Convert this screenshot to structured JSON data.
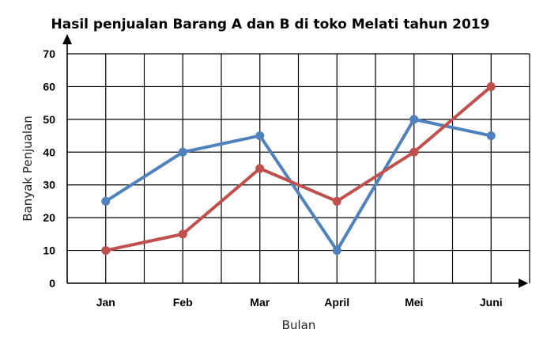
{
  "chart_data": {
    "type": "line",
    "title": "Hasil penjualan Barang A dan B di toko Melati tahun 2019",
    "xlabel": "Bulan",
    "ylabel": "Banyak Penjualan",
    "categories": [
      "Jan",
      "Feb",
      "Mar",
      "April",
      "Mei",
      "Juni"
    ],
    "y_ticks": [
      "0",
      "10",
      "20",
      "30",
      "40",
      "50",
      "60",
      "70"
    ],
    "ylim": [
      0,
      70
    ],
    "grid": true,
    "legend": "none",
    "series": [
      {
        "color": "#4f81bd",
        "values": [
          25,
          40,
          45,
          10,
          50,
          45
        ]
      },
      {
        "color": "#c0504d",
        "values": [
          10,
          15,
          35,
          25,
          40,
          60
        ]
      }
    ]
  }
}
